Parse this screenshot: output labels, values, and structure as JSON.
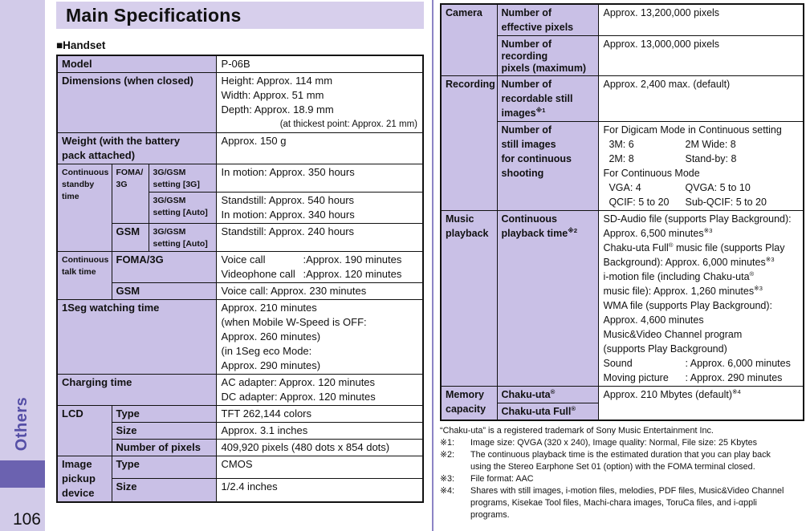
{
  "sidebar": {
    "tab_label": "Others",
    "page_number": "106"
  },
  "header": {
    "title": "Main Specifications"
  },
  "section": {
    "label": "■Handset"
  },
  "colors": {
    "band": "#d2cbe9",
    "accent_square": "#6b62b0",
    "tab_text": "#554fa6",
    "title_bg": "#d7cfec",
    "cell_header_bg": "#c9c0e6",
    "divider": "#8c84c5",
    "border": "#111111"
  },
  "handset_table": {
    "rows": [
      {
        "cells": [
          {
            "text": "Model",
            "header": true,
            "colspan": 3
          },
          {
            "lines": [
              "P-06B"
            ]
          }
        ]
      },
      {
        "cells": [
          {
            "text": "Dimensions (when closed)",
            "header": true,
            "colspan": 3
          },
          {
            "lines": [
              "Height: Approx. 114 mm",
              "Width: Approx. 51 mm",
              "Depth: Approx. 18.9 mm",
              {
                "text": "(at thickest point: Approx. 21 mm)",
                "align": "right",
                "small": true
              }
            ]
          }
        ]
      },
      {
        "cells": [
          {
            "text": "Weight (with the battery\npack attached)",
            "header": true,
            "colspan": 3
          },
          {
            "lines": [
              "Approx. 150 g"
            ]
          }
        ]
      },
      {
        "cells": [
          {
            "text": "Continuous\nstandby\ntime",
            "header": true,
            "small": true,
            "rowspan": 3
          },
          {
            "text": "FOMA/\n3G",
            "header": true,
            "small": true,
            "rowspan": 2
          },
          {
            "text": "3G/GSM\nsetting [3G]",
            "header": true,
            "small": true
          },
          {
            "lines": [
              "In motion: Approx. 350 hours"
            ]
          }
        ]
      },
      {
        "cells": [
          {
            "text": "3G/GSM\nsetting [Auto]",
            "header": true,
            "small": true
          },
          {
            "lines": [
              "Standstill: Approx. 540 hours",
              "In motion: Approx. 340 hours"
            ]
          }
        ]
      },
      {
        "cells": [
          {
            "text": "GSM",
            "header": true
          },
          {
            "text": "3G/GSM\nsetting [Auto]",
            "header": true,
            "small": true
          },
          {
            "lines": [
              "Standstill: Approx. 240 hours"
            ]
          }
        ]
      },
      {
        "cells": [
          {
            "text": "Continuous\ntalk time",
            "header": true,
            "small": true,
            "rowspan": 2
          },
          {
            "text": "FOMA/3G",
            "header": true,
            "colspan": 2
          },
          {
            "lines": [
              {
                "left": "Voice call",
                "right": ":Approx. 190 minutes"
              },
              {
                "left": "Videophone call",
                "right": ":Approx. 120 minutes"
              }
            ]
          }
        ]
      },
      {
        "cells": [
          {
            "text": "GSM",
            "header": true,
            "colspan": 2
          },
          {
            "lines": [
              "Voice call: Approx. 230 minutes"
            ]
          }
        ]
      },
      {
        "cells": [
          {
            "text": "1Seg watching time",
            "header": true,
            "colspan": 3
          },
          {
            "lines": [
              "Approx. 210 minutes",
              "(when Mobile W-Speed is OFF:",
              "Approx. 260 minutes)",
              "(in 1Seg eco Mode:",
              "Approx. 290 minutes)"
            ]
          }
        ]
      },
      {
        "cells": [
          {
            "text": "Charging time",
            "header": true,
            "colspan": 3
          },
          {
            "lines": [
              "AC adapter: Approx. 120 minutes",
              "DC adapter: Approx. 120 minutes"
            ]
          }
        ]
      },
      {
        "cells": [
          {
            "text": "LCD",
            "header": true,
            "rowspan": 3
          },
          {
            "text": "Type",
            "header": true,
            "colspan": 2
          },
          {
            "lines": [
              "TFT 262,144 colors"
            ]
          }
        ]
      },
      {
        "cells": [
          {
            "text": "Size",
            "header": true,
            "colspan": 2
          },
          {
            "lines": [
              "Approx. 3.1 inches"
            ]
          }
        ]
      },
      {
        "cells": [
          {
            "text": "Number of pixels",
            "header": true,
            "colspan": 2
          },
          {
            "lines": [
              "409,920 pixels (480 dots x 854 dots)"
            ]
          }
        ]
      },
      {
        "cells": [
          {
            "text": "Image\npickup\ndevice",
            "header": true,
            "rowspan": 2
          },
          {
            "text": "Type",
            "header": true,
            "colspan": 2
          },
          {
            "lines": [
              "CMOS"
            ]
          }
        ]
      },
      {
        "cells": [
          {
            "text": "Size",
            "header": true,
            "colspan": 2
          },
          {
            "lines": [
              "1/2.4 inches"
            ]
          }
        ]
      }
    ]
  },
  "camera_table": {
    "rows": [
      {
        "cells": [
          {
            "text": "Camera",
            "header": true,
            "rowspan": 2
          },
          {
            "text": "Number of\neffective pixels",
            "header": true
          },
          {
            "lines": [
              "Approx. 13,200,000 pixels"
            ]
          }
        ]
      },
      {
        "cells": [
          {
            "text": "Number of recording\npixels (maximum)",
            "header": true,
            "small": true
          },
          {
            "lines": [
              "Approx. 13,000,000 pixels"
            ]
          }
        ]
      },
      {
        "cells": [
          {
            "text": "Recording",
            "header": true,
            "rowspan": 2
          },
          {
            "text": "Number of\nrecordable still\nimages※1",
            "header": true
          },
          {
            "lines": [
              "Approx. 2,400 max. (default)"
            ]
          }
        ]
      },
      {
        "cells": [
          {
            "text": "Number of\nstill images\nfor continuous\nshooting",
            "header": true
          },
          {
            "lines": [
              "For Digicam Mode in Continuous setting",
              {
                "left": "  3M: 6",
                "right": "2M Wide: 8"
              },
              {
                "left": "  2M: 8",
                "right": "Stand-by: 8"
              },
              "For Continuous Mode",
              {
                "left": "  VGA: 4",
                "right": "QVGA: 5 to 10"
              },
              {
                "left": "  QCIF: 5 to 20",
                "right": "Sub-QCIF: 5 to 20"
              }
            ]
          }
        ]
      },
      {
        "cells": [
          {
            "text": "Music\nplayback",
            "header": true
          },
          {
            "text": "Continuous\nplayback time※2",
            "header": true
          },
          {
            "lines": [
              "SD-Audio file (supports Play Background):",
              "Approx. 6,500 minutes※3",
              "Chaku-uta Full® music file (supports Play",
              "Background): Approx. 6,000 minutes※3",
              "i-motion file (including Chaku-uta®",
              "music file): Approx. 1,260 minutes※3",
              "WMA file (supports Play Background):",
              "Approx. 4,600 minutes",
              "Music&Video Channel program",
              "(supports Play Background)",
              {
                "left": "Sound",
                "right": ": Approx. 6,000 minutes"
              },
              {
                "left": "Moving picture",
                "right": ": Approx. 290 minutes"
              }
            ]
          }
        ]
      },
      {
        "cells": [
          {
            "text": "Memory\ncapacity",
            "header": true,
            "rowspan": 2
          },
          {
            "text": "Chaku-uta®",
            "header": true
          },
          {
            "lines": [
              "Approx. 210 Mbytes (default)※4"
            ],
            "rowspan": 2
          }
        ]
      },
      {
        "cells": [
          {
            "text": "Chaku-uta Full®",
            "header": true
          }
        ]
      }
    ]
  },
  "footnotes": [
    {
      "marker": "",
      "text": "“Chaku-uta” is a registered trademark of Sony Music Entertainment Inc."
    },
    {
      "marker": "※1:",
      "text": "Image size: QVGA (320 x 240), Image quality: Normal, File size: 25 Kbytes"
    },
    {
      "marker": "※2:",
      "text": "The continuous playback time is the estimated duration that you can play back\nusing the Stereo Earphone Set 01 (option) with the FOMA terminal closed."
    },
    {
      "marker": "※3:",
      "text": "File format: AAC"
    },
    {
      "marker": "※4:",
      "text": "Shares with still images, i-motion files, melodies, PDF files, Music&Video Channel\nprograms, Kisekae Tool files, Machi-chara images, ToruCa files, and i-αppli\nprograms."
    }
  ]
}
